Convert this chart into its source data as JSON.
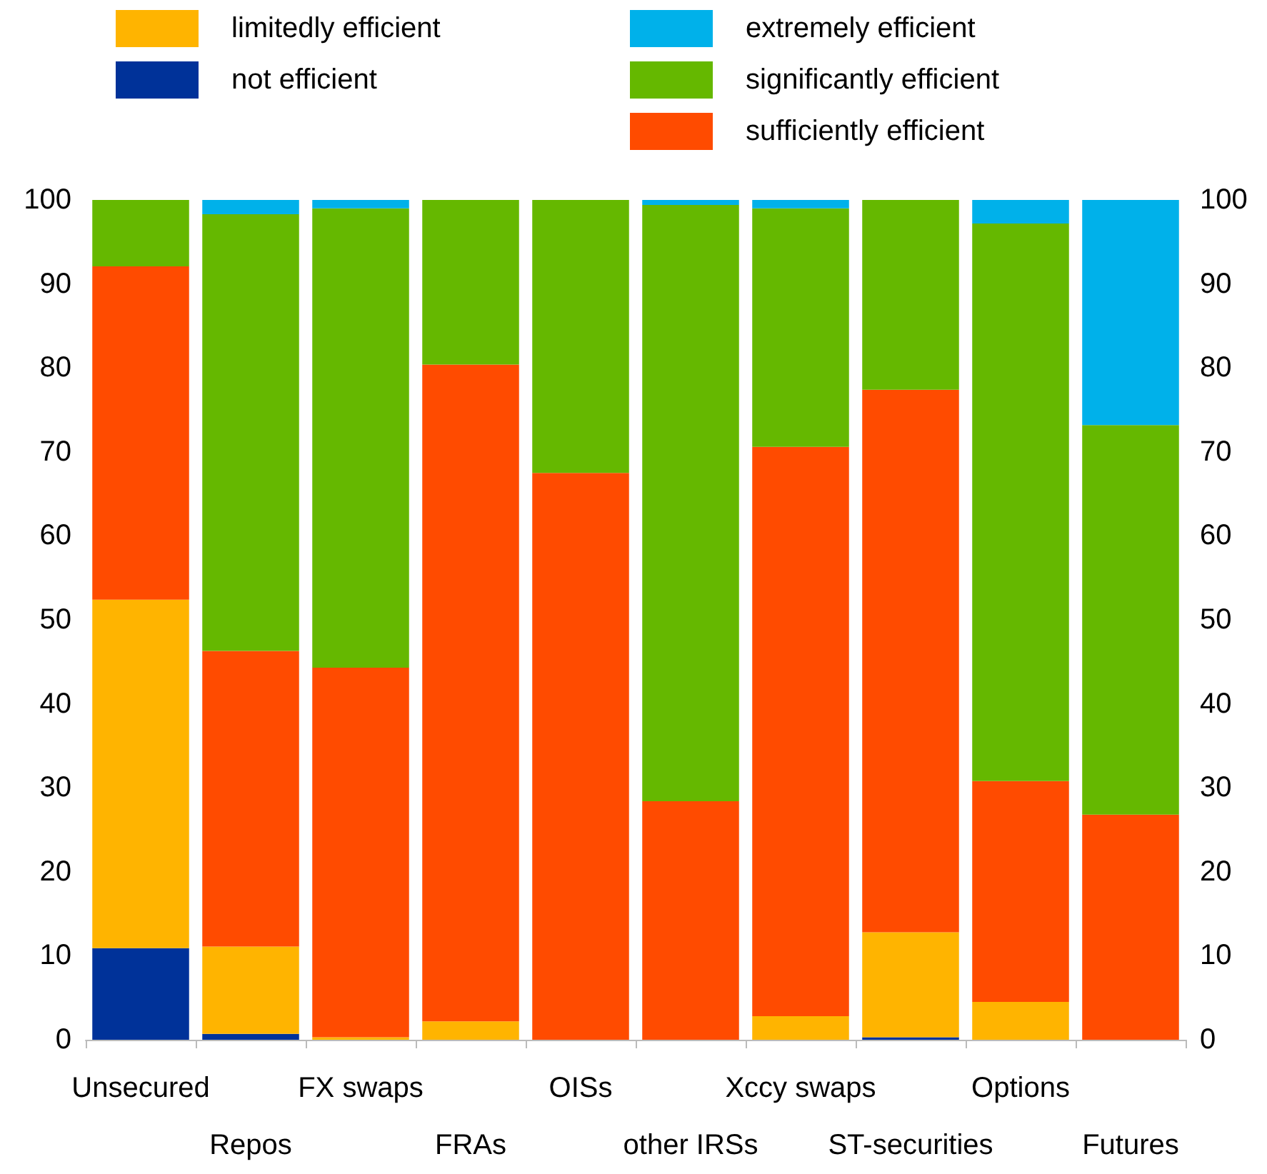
{
  "chart_data": {
    "type": "bar",
    "stacked": true,
    "categories": [
      "Unsecured",
      "Repos",
      "FX swaps",
      "FRAs",
      "OISs",
      "other IRSs",
      "Xccy swaps",
      "ST-securities",
      "Options",
      "Futures"
    ],
    "series": [
      {
        "name": "not efficient",
        "color": "#003299",
        "values": [
          10.9,
          0.7,
          0,
          0,
          0,
          0,
          0,
          0.3,
          0,
          0
        ]
      },
      {
        "name": "limitedly efficient",
        "color": "#ffb400",
        "values": [
          41.5,
          10.4,
          0.3,
          2.2,
          0,
          0,
          2.8,
          12.5,
          4.5,
          0
        ]
      },
      {
        "name": "sufficiently efficient",
        "color": "#ff4b00",
        "values": [
          39.7,
          35.2,
          44,
          78.2,
          67.5,
          28.4,
          67.8,
          64.6,
          26.3,
          26.8
        ]
      },
      {
        "name": "significantly efficient",
        "color": "#65b800",
        "values": [
          7.9,
          52,
          54.7,
          19.6,
          32.5,
          71,
          28.4,
          22.6,
          66.4,
          46.4
        ]
      },
      {
        "name": "extremely efficient",
        "color": "#00b1ea",
        "values": [
          0,
          1.7,
          1,
          0,
          0,
          0.6,
          1,
          0,
          2.8,
          26.8
        ]
      }
    ],
    "ylim": [
      0,
      100
    ],
    "yticks": [
      0,
      10,
      20,
      30,
      40,
      50,
      60,
      70,
      80,
      90,
      100
    ],
    "y2lim": [
      0,
      100
    ],
    "y2ticks": [
      0,
      10,
      20,
      30,
      40,
      50,
      60,
      70,
      80,
      90,
      100
    ],
    "grid": false,
    "legend": "top"
  }
}
